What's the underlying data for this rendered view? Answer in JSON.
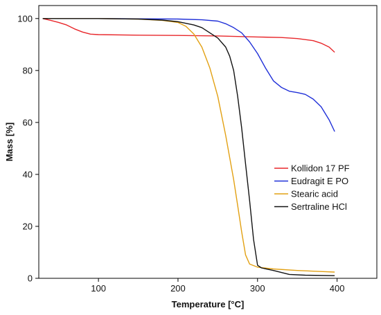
{
  "chart_data": {
    "type": "line",
    "xlabel": "Temperature [°C]",
    "ylabel": "Mass [%]",
    "xlim": [
      25,
      450
    ],
    "ylim": [
      0,
      105
    ],
    "xticks": [
      100,
      200,
      300,
      400
    ],
    "yticks": [
      0,
      20,
      40,
      60,
      80,
      100
    ],
    "grid": false,
    "legend_position": "center-right",
    "series": [
      {
        "name": "Kollidon 17 PF",
        "color": "#e8262a",
        "points": [
          [
            30,
            100
          ],
          [
            40,
            99.3
          ],
          [
            50,
            98.5
          ],
          [
            60,
            97.5
          ],
          [
            70,
            96
          ],
          [
            80,
            94.8
          ],
          [
            90,
            94
          ],
          [
            100,
            93.8
          ],
          [
            150,
            93.6
          ],
          [
            200,
            93.5
          ],
          [
            250,
            93.3
          ],
          [
            300,
            92.9
          ],
          [
            330,
            92.7
          ],
          [
            350,
            92.3
          ],
          [
            370,
            91.5
          ],
          [
            380,
            90.5
          ],
          [
            390,
            89
          ],
          [
            397,
            87
          ]
        ]
      },
      {
        "name": "Eudragit E PO",
        "color": "#1f2fd8",
        "points": [
          [
            30,
            100
          ],
          [
            100,
            100
          ],
          [
            200,
            99.8
          ],
          [
            230,
            99.5
          ],
          [
            250,
            99
          ],
          [
            260,
            98
          ],
          [
            270,
            96.5
          ],
          [
            280,
            94.5
          ],
          [
            290,
            91
          ],
          [
            300,
            86.5
          ],
          [
            310,
            81
          ],
          [
            320,
            76
          ],
          [
            330,
            73.5
          ],
          [
            340,
            72
          ],
          [
            350,
            71.5
          ],
          [
            360,
            70.8
          ],
          [
            370,
            69
          ],
          [
            380,
            66
          ],
          [
            390,
            61
          ],
          [
            397,
            56.5
          ]
        ]
      },
      {
        "name": "Stearic acid",
        "color": "#e2a012",
        "points": [
          [
            30,
            100
          ],
          [
            100,
            100
          ],
          [
            150,
            99.8
          ],
          [
            180,
            99.3
          ],
          [
            200,
            98.5
          ],
          [
            210,
            97
          ],
          [
            220,
            94
          ],
          [
            230,
            89
          ],
          [
            240,
            81
          ],
          [
            250,
            70
          ],
          [
            260,
            55
          ],
          [
            270,
            38
          ],
          [
            275,
            28
          ],
          [
            280,
            18
          ],
          [
            285,
            9
          ],
          [
            290,
            5.5
          ],
          [
            300,
            4.3
          ],
          [
            320,
            3.6
          ],
          [
            350,
            3
          ],
          [
            380,
            2.6
          ],
          [
            397,
            2.4
          ]
        ]
      },
      {
        "name": "Sertraline HCl",
        "color": "#111111",
        "points": [
          [
            30,
            100
          ],
          [
            100,
            100
          ],
          [
            150,
            99.8
          ],
          [
            180,
            99.4
          ],
          [
            200,
            98.8
          ],
          [
            220,
            97.5
          ],
          [
            230,
            96.5
          ],
          [
            240,
            94.5
          ],
          [
            250,
            92.5
          ],
          [
            260,
            89
          ],
          [
            265,
            85.5
          ],
          [
            270,
            80
          ],
          [
            275,
            70
          ],
          [
            280,
            58
          ],
          [
            285,
            44
          ],
          [
            290,
            30
          ],
          [
            295,
            15
          ],
          [
            300,
            5
          ],
          [
            305,
            4
          ],
          [
            320,
            3
          ],
          [
            340,
            1.5
          ],
          [
            360,
            1.2
          ],
          [
            397,
            1
          ]
        ]
      }
    ]
  }
}
